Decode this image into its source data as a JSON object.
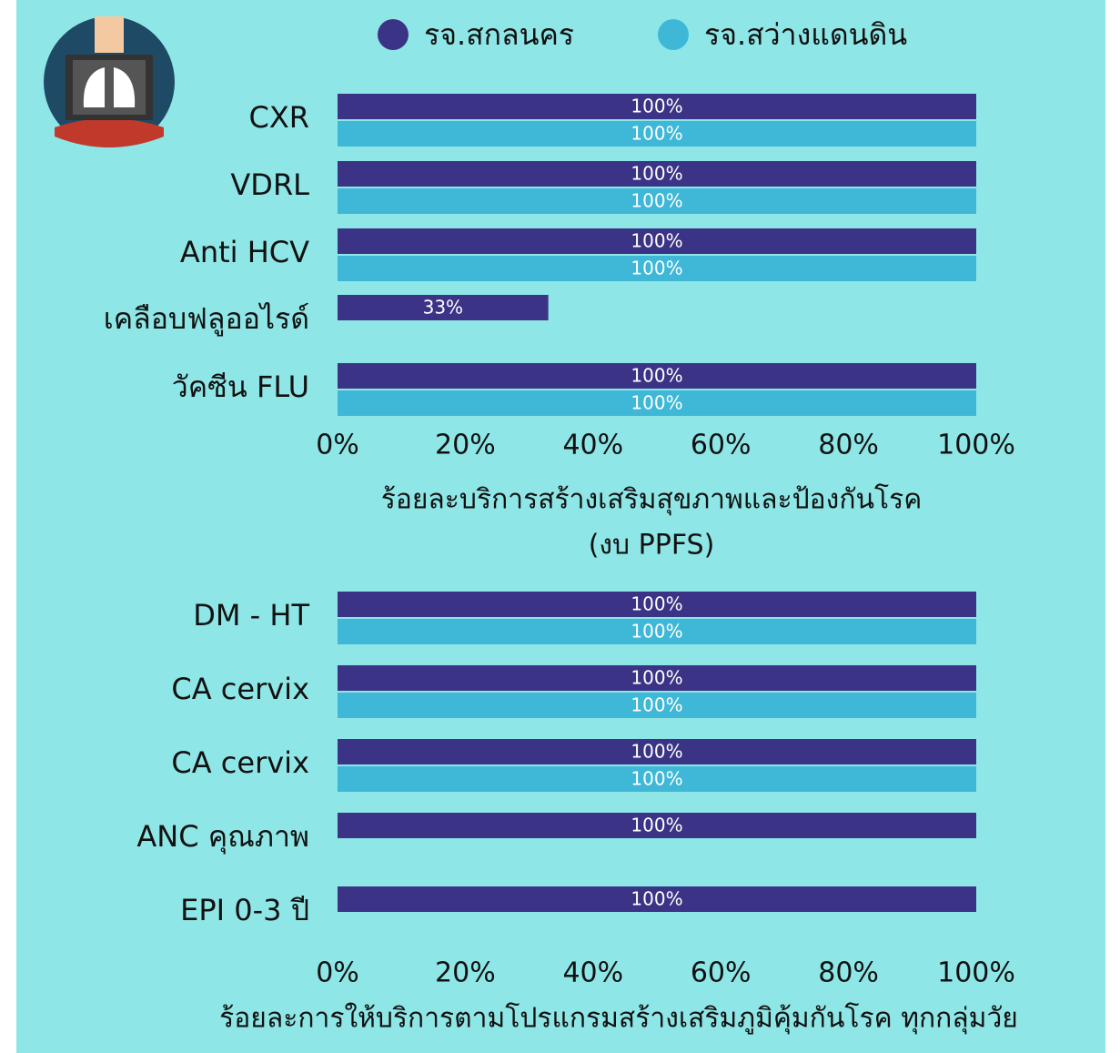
{
  "chart_data": [
    {
      "type": "bar",
      "orientation": "horizontal",
      "categories": [
        "CXR",
        "VDRL",
        "Anti HCV",
        "เคลือบฟลูออไรด์",
        "วัคซีน FLU"
      ],
      "series": [
        {
          "name": "รจ.สกลนคร",
          "color": "#3b3486",
          "values": [
            100,
            100,
            100,
            33,
            100
          ],
          "value_labels": [
            "100%",
            "100%",
            "100%",
            "33%",
            "100%"
          ]
        },
        {
          "name": "รจ.สว่างแดนดิน",
          "color": "#3fb8d8",
          "values": [
            100,
            100,
            100,
            null,
            100
          ],
          "value_labels": [
            "100%",
            "100%",
            "100%",
            null,
            "100%"
          ]
        }
      ],
      "xlim": [
        0,
        100
      ],
      "xticks": [
        {
          "value": 0,
          "label": "0%"
        },
        {
          "value": 20,
          "label": "20%"
        },
        {
          "value": 40,
          "label": "40%"
        },
        {
          "value": 60,
          "label": "60%"
        },
        {
          "value": 80,
          "label": "80%"
        },
        {
          "value": 100,
          "label": "100%"
        }
      ],
      "xlabel": [
        "ร้อยละบริการสร้างเสริมสุขภาพและป้องกันโรค",
        "(งบ PPFS)"
      ]
    },
    {
      "type": "bar",
      "orientation": "horizontal",
      "categories": [
        "DM - HT",
        "CA cervix",
        "CA cervix",
        "ANC คุณภาพ",
        "EPI 0-3 ปี"
      ],
      "series": [
        {
          "name": "รจ.สกลนคร",
          "color": "#3b3486",
          "values": [
            100,
            100,
            100,
            100,
            100
          ],
          "value_labels": [
            "100%",
            "100%",
            "100%",
            "100%",
            "100%"
          ]
        },
        {
          "name": "รจ.สว่างแดนดิน",
          "color": "#3fb8d8",
          "values": [
            100,
            100,
            100,
            null,
            null
          ],
          "value_labels": [
            "100%",
            "100%",
            "100%",
            null,
            null
          ]
        }
      ],
      "xlim": [
        0,
        100
      ],
      "xticks": [
        {
          "value": 0,
          "label": "0%"
        },
        {
          "value": 20,
          "label": "20%"
        },
        {
          "value": 40,
          "label": "40%"
        },
        {
          "value": 60,
          "label": "60%"
        },
        {
          "value": 80,
          "label": "80%"
        },
        {
          "value": 100,
          "label": "100%"
        }
      ],
      "xlabel": [
        "ร้อยละการให้บริการตามโปรแกรมสร้างเสริมภูมิคุ้มกันโรค ทุกกลุ่มวัย"
      ]
    }
  ]
}
